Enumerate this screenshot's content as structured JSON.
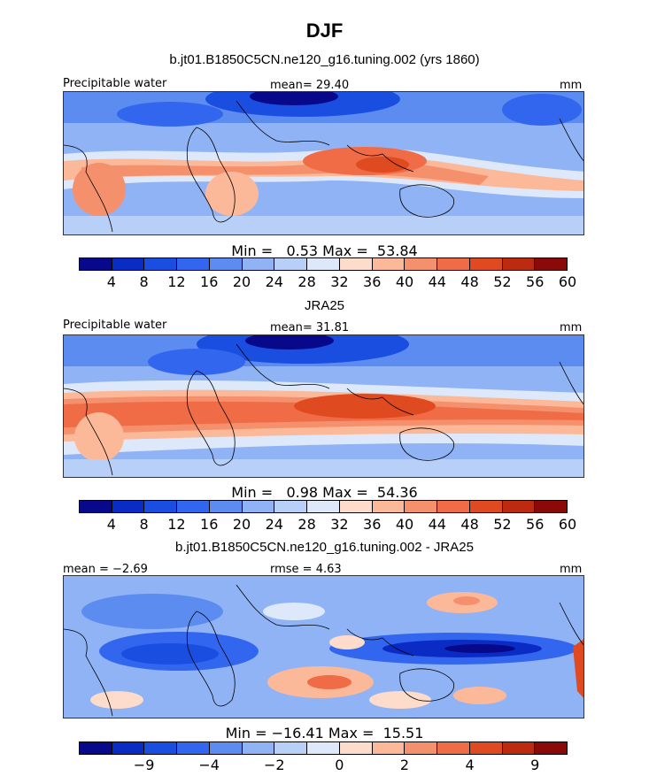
{
  "figure": {
    "title": "DJF",
    "panels": [
      {
        "subtitle": "b.jt01.B1850C5CN.ne120_g16.tuning.002 (yrs 1860)",
        "left_label": "Precipitable water",
        "center_label": "mean=  29.40",
        "right_label": "mm",
        "minmax": "Min =   0.53 Max =  53.84",
        "colorbar_ticks": [
          "4",
          "8",
          "12",
          "16",
          "20",
          "24",
          "28",
          "32",
          "36",
          "40",
          "44",
          "48",
          "52",
          "56",
          "60"
        ]
      },
      {
        "subtitle": "JRA25",
        "left_label": "Precipitable water",
        "center_label": "mean=  31.81",
        "right_label": "mm",
        "minmax": "Min =   0.98 Max =  54.36",
        "colorbar_ticks": [
          "4",
          "8",
          "12",
          "16",
          "20",
          "24",
          "28",
          "32",
          "36",
          "40",
          "44",
          "48",
          "52",
          "56",
          "60"
        ]
      },
      {
        "subtitle": "b.jt01.B1850C5CN.ne120_g16.tuning.002 - JRA25",
        "left_label": "mean =  −2.69",
        "center_label": "rmse =   4.63",
        "right_label": "mm",
        "minmax": "Min = −16.41 Max =  15.51",
        "colorbar_ticks": [
          "−9",
          "−4",
          "−2",
          "0",
          "2",
          "4",
          "9"
        ]
      }
    ],
    "colors": {
      "abs_scale": [
        "#08088a",
        "#0b2cc4",
        "#1a4ee0",
        "#3366ee",
        "#5c8cf0",
        "#8fb3f5",
        "#b8d0f8",
        "#dde9fb",
        "#fddccc",
        "#fcb99a",
        "#f5906c",
        "#ef6c46",
        "#e04a20",
        "#bc2a10",
        "#8a0a0a"
      ],
      "diff_scale": [
        "#08088a",
        "#0b2cc4",
        "#1a4ee0",
        "#3366ee",
        "#5c8cf0",
        "#8fb3f5",
        "#b8d0f8",
        "#dde9fb",
        "#fddccc",
        "#fcb99a",
        "#f5906c",
        "#ef6c46",
        "#e04a20",
        "#bc2a10",
        "#8a0a0a"
      ]
    }
  }
}
